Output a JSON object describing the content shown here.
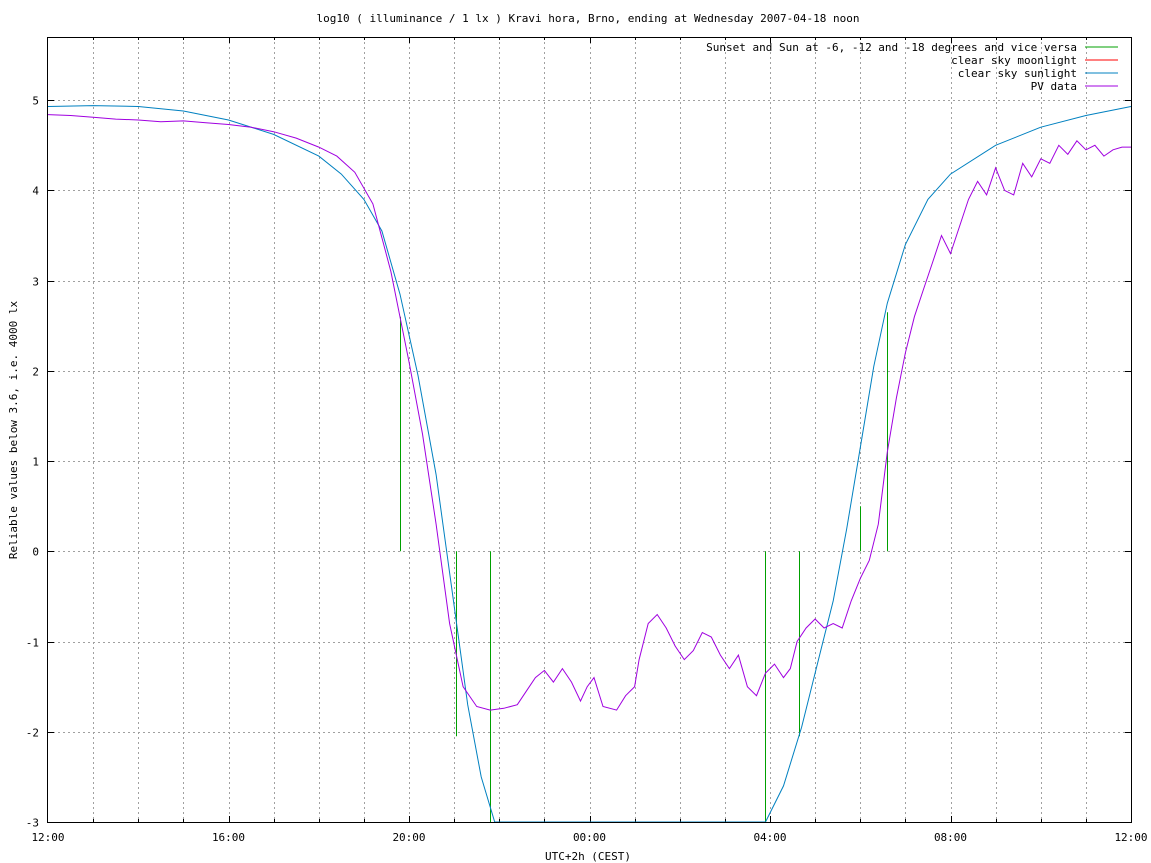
{
  "chart_data": {
    "type": "line",
    "title": "log10 ( illuminance / 1 lx ) Kravi hora, Brno, ending at Wednesday 2007-04-18 noon",
    "xlabel": "UTC+2h (CEST)",
    "ylabel": "Reliable values below 3.6, i.e. 4000 lx",
    "x_unit": "hours since 12:00 (local time)",
    "xlim": [
      0,
      24
    ],
    "ylim": [
      -3,
      5.7
    ],
    "x_ticks": [
      {
        "x": 0,
        "label": "12:00"
      },
      {
        "x": 4,
        "label": "16:00"
      },
      {
        "x": 8,
        "label": "20:00"
      },
      {
        "x": 12,
        "label": "00:00"
      },
      {
        "x": 16,
        "label": "04:00"
      },
      {
        "x": 20,
        "label": "08:00"
      },
      {
        "x": 24,
        "label": "12:00"
      }
    ],
    "y_ticks": [
      {
        "y": 5,
        "label": "5"
      },
      {
        "y": 4,
        "label": "4"
      },
      {
        "y": 3,
        "label": "3"
      },
      {
        "y": 2,
        "label": "2"
      },
      {
        "y": 1,
        "label": "1"
      },
      {
        "y": 0,
        "label": "0"
      },
      {
        "y": -1,
        "label": "-1"
      },
      {
        "y": -2,
        "label": "-2"
      },
      {
        "y": -3,
        "label": "-3"
      }
    ],
    "grid": true,
    "legend": "top-right",
    "series": [
      {
        "name": "Sunset and Sun at -6, -12 and -18 degrees and vice versa",
        "color": "#00a000",
        "style": "impulses",
        "points": [
          {
            "x": 7.8,
            "y0": 0,
            "y1": 2.6
          },
          {
            "x": 9.05,
            "y0": 0,
            "y1": -2.05
          },
          {
            "x": 9.8,
            "y0": 0,
            "y1": -3
          },
          {
            "x": 15.9,
            "y0": 0,
            "y1": -3
          },
          {
            "x": 16.65,
            "y0": 0,
            "y1": -2.05
          },
          {
            "x": 18.0,
            "y0": 0,
            "y1": 0.5
          },
          {
            "x": 18.6,
            "y0": 0,
            "y1": 2.65
          }
        ]
      },
      {
        "name": "clear sky moonlight",
        "color": "#ff0000",
        "points": []
      },
      {
        "name": "clear sky sunlight",
        "color": "#0080c0",
        "points": [
          [
            0,
            4.93
          ],
          [
            1,
            4.94
          ],
          [
            2,
            4.93
          ],
          [
            3,
            4.88
          ],
          [
            4,
            4.78
          ],
          [
            5,
            4.62
          ],
          [
            6,
            4.38
          ],
          [
            6.5,
            4.18
          ],
          [
            7,
            3.9
          ],
          [
            7.4,
            3.55
          ],
          [
            7.8,
            2.85
          ],
          [
            8.2,
            1.95
          ],
          [
            8.6,
            0.85
          ],
          [
            9.0,
            -0.6
          ],
          [
            9.3,
            -1.7
          ],
          [
            9.6,
            -2.5
          ],
          [
            9.9,
            -3.0
          ],
          [
            15.9,
            -3.0
          ],
          [
            16.3,
            -2.6
          ],
          [
            16.7,
            -1.95
          ],
          [
            17.1,
            -1.15
          ],
          [
            17.4,
            -0.55
          ],
          [
            17.7,
            0.25
          ],
          [
            18.0,
            1.15
          ],
          [
            18.3,
            2.05
          ],
          [
            18.6,
            2.75
          ],
          [
            19.0,
            3.4
          ],
          [
            19.5,
            3.9
          ],
          [
            20,
            4.18
          ],
          [
            21,
            4.5
          ],
          [
            22,
            4.7
          ],
          [
            23,
            4.83
          ],
          [
            24,
            4.93
          ]
        ]
      },
      {
        "name": "PV data",
        "color": "#a000e0",
        "points": [
          [
            0,
            4.84
          ],
          [
            0.5,
            4.83
          ],
          [
            1,
            4.81
          ],
          [
            1.5,
            4.79
          ],
          [
            2,
            4.78
          ],
          [
            2.5,
            4.76
          ],
          [
            3,
            4.77
          ],
          [
            3.5,
            4.75
          ],
          [
            4,
            4.73
          ],
          [
            4.5,
            4.7
          ],
          [
            5,
            4.65
          ],
          [
            5.5,
            4.58
          ],
          [
            6,
            4.48
          ],
          [
            6.4,
            4.38
          ],
          [
            6.8,
            4.2
          ],
          [
            7.2,
            3.85
          ],
          [
            7.6,
            3.1
          ],
          [
            8.0,
            2.1
          ],
          [
            8.3,
            1.3
          ],
          [
            8.6,
            0.3
          ],
          [
            8.9,
            -0.8
          ],
          [
            9.2,
            -1.5
          ],
          [
            9.5,
            -1.72
          ],
          [
            9.8,
            -1.76
          ],
          [
            10.1,
            -1.74
          ],
          [
            10.4,
            -1.7
          ],
          [
            10.6,
            -1.55
          ],
          [
            10.8,
            -1.4
          ],
          [
            11.0,
            -1.32
          ],
          [
            11.2,
            -1.45
          ],
          [
            11.4,
            -1.3
          ],
          [
            11.6,
            -1.45
          ],
          [
            11.8,
            -1.66
          ],
          [
            11.95,
            -1.5
          ],
          [
            12.1,
            -1.4
          ],
          [
            12.3,
            -1.72
          ],
          [
            12.6,
            -1.76
          ],
          [
            12.8,
            -1.6
          ],
          [
            13.0,
            -1.5
          ],
          [
            13.1,
            -1.2
          ],
          [
            13.3,
            -0.8
          ],
          [
            13.5,
            -0.7
          ],
          [
            13.7,
            -0.85
          ],
          [
            13.9,
            -1.05
          ],
          [
            14.1,
            -1.2
          ],
          [
            14.3,
            -1.1
          ],
          [
            14.5,
            -0.9
          ],
          [
            14.7,
            -0.95
          ],
          [
            14.9,
            -1.15
          ],
          [
            15.1,
            -1.3
          ],
          [
            15.3,
            -1.15
          ],
          [
            15.5,
            -1.5
          ],
          [
            15.7,
            -1.6
          ],
          [
            15.9,
            -1.35
          ],
          [
            16.1,
            -1.25
          ],
          [
            16.3,
            -1.4
          ],
          [
            16.45,
            -1.3
          ],
          [
            16.6,
            -1.0
          ],
          [
            16.8,
            -0.85
          ],
          [
            17.0,
            -0.75
          ],
          [
            17.2,
            -0.85
          ],
          [
            17.4,
            -0.8
          ],
          [
            17.6,
            -0.85
          ],
          [
            17.8,
            -0.55
          ],
          [
            18.0,
            -0.3
          ],
          [
            18.2,
            -0.1
          ],
          [
            18.4,
            0.3
          ],
          [
            18.6,
            1.1
          ],
          [
            18.8,
            1.7
          ],
          [
            19.0,
            2.2
          ],
          [
            19.2,
            2.6
          ],
          [
            19.4,
            2.9
          ],
          [
            19.6,
            3.2
          ],
          [
            19.8,
            3.5
          ],
          [
            20.0,
            3.3
          ],
          [
            20.2,
            3.6
          ],
          [
            20.4,
            3.9
          ],
          [
            20.6,
            4.1
          ],
          [
            20.8,
            3.95
          ],
          [
            21.0,
            4.25
          ],
          [
            21.2,
            4.0
          ],
          [
            21.4,
            3.95
          ],
          [
            21.6,
            4.3
          ],
          [
            21.8,
            4.15
          ],
          [
            22.0,
            4.35
          ],
          [
            22.2,
            4.3
          ],
          [
            22.4,
            4.5
          ],
          [
            22.6,
            4.4
          ],
          [
            22.8,
            4.55
          ],
          [
            23.0,
            4.45
          ],
          [
            23.2,
            4.5
          ],
          [
            23.4,
            4.38
          ],
          [
            23.6,
            4.45
          ],
          [
            23.8,
            4.48
          ],
          [
            24.0,
            4.48
          ]
        ]
      }
    ]
  }
}
